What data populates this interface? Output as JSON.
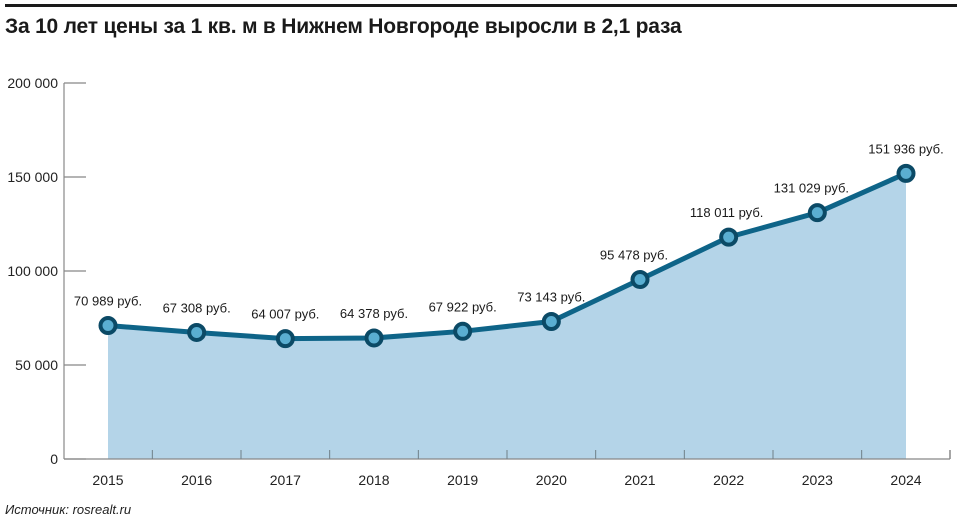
{
  "header": {
    "title": "За 10 лет цены за 1 кв. м в Нижнем Новгороде выросли в 2,1 раза"
  },
  "footer": {
    "source": "Источник: rosrealt.ru"
  },
  "colors": {
    "line": "#0e6488",
    "marker_outer": "#0b4a66",
    "marker_inner": "#5aaed1",
    "area_fill": "#b4d4e8",
    "axis": "#888888"
  },
  "chart_data": {
    "type": "area",
    "title": "За 10 лет цены за 1 кв. м в Нижнем Новгороде выросли в 2,1 раза",
    "xlabel": "",
    "ylabel": "",
    "categories": [
      "2015",
      "2016",
      "2017",
      "2018",
      "2019",
      "2020",
      "2021",
      "2022",
      "2023",
      "2024"
    ],
    "values": [
      70989,
      67308,
      64007,
      64378,
      67922,
      73143,
      95478,
      118011,
      131029,
      151936
    ],
    "data_labels": [
      "70 989 руб.",
      "67 308 руб.",
      "64 007 руб.",
      "64 378 руб.",
      "67 922 руб.",
      "73 143 руб.",
      "95 478 руб.",
      "118 011 руб.",
      "131 029 руб.",
      "151 936 руб."
    ],
    "yticks": [
      0,
      50000,
      100000,
      150000,
      200000
    ],
    "ytick_labels": [
      "0",
      "50 000",
      "100 000",
      "150 000",
      "200 000"
    ],
    "ylim": [
      0,
      200000
    ],
    "grid": false,
    "legend": null,
    "source": "Источник: rosrealt.ru"
  }
}
